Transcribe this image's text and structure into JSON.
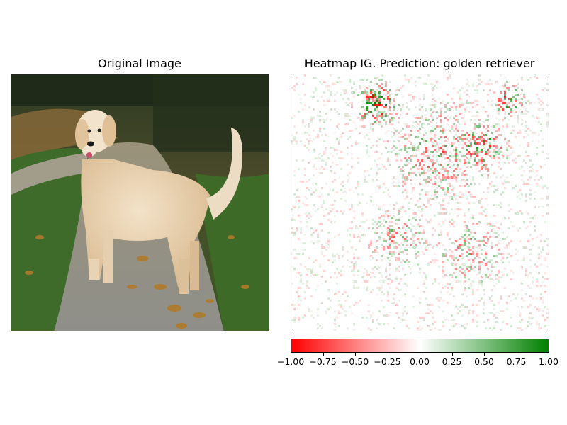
{
  "left_panel": {
    "title": "Original Image",
    "image_subject": "golden retriever dog standing on a gravel path with fallen leaves and grass"
  },
  "chart_data": {
    "type": "heatmap",
    "title": "Heatmap IG. Prediction: golden retriever",
    "colormap": {
      "low": "#ff0000",
      "mid": "#ffffff",
      "high": "#008000"
    },
    "value_range": [
      -1.0,
      1.0
    ],
    "colorbar": {
      "ticks": [
        -1.0,
        -0.75,
        -0.5,
        -0.25,
        0.0,
        0.25,
        0.5,
        0.75,
        1.0
      ],
      "tick_labels": [
        "−1.00",
        "−0.75",
        "−0.50",
        "−0.25",
        "0.00",
        "0.25",
        "0.50",
        "0.75",
        "1.00"
      ]
    }
  }
}
